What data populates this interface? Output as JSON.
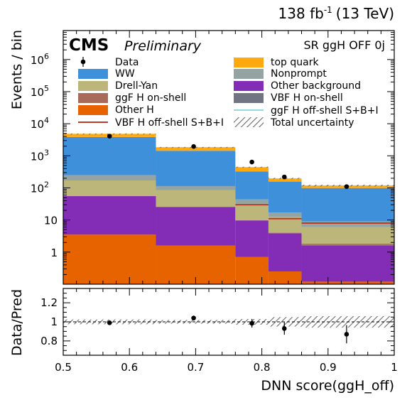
{
  "header": {
    "lumi": "138 fb",
    "lumi_sup": "-1",
    "energy": "(13 TeV)",
    "cms": "CMS",
    "preliminary": "Preliminary",
    "region": "SR ggH OFF 0j"
  },
  "colors": {
    "WW": "#3f90da",
    "top": "#ffa90e",
    "DY": "#bdb67a",
    "nonprompt": "#94a4a2",
    "ggFon": "#a96b59",
    "other_bkg": "#832db6",
    "VBFon": "#717581",
    "otherH": "#e76300",
    "vbf_off": "#b9392b",
    "ggf_off": "#92dadd"
  },
  "legend": {
    "data": "Data",
    "WW": "WW",
    "DY": "Drell-Yan",
    "ggFon": "ggF H on-shell",
    "otherH": "Other H",
    "vbf_off": "VBF H off-shell S+B+I",
    "top": "top quark",
    "nonprompt": "Nonprompt",
    "other_bkg": "Other background",
    "VBFon": "VBF H on-shell",
    "ggf_off": "ggF H off-shell S+B+I",
    "unc": "Total uncertainty"
  },
  "chart_data": {
    "type": "bar",
    "subtype": "stacked-histogram-with-ratio",
    "bin_edges": [
      0.5,
      0.64,
      0.76,
      0.81,
      0.86,
      1.0
    ],
    "xlim": [
      0.5,
      1.0
    ],
    "xlabel": "DNN score(ggH_off)",
    "xticks": [
      "0.5",
      "0.6",
      "0.7",
      "0.8",
      "0.9",
      "1"
    ],
    "ylabel": "Events / bin",
    "yscale": "log",
    "ylim": [
      0.1,
      8000000
    ],
    "yticks": [
      {
        "value": 1,
        "label": "1"
      },
      {
        "value": 10,
        "label": "10"
      },
      {
        "value": 100,
        "label": "10",
        "sup": "2"
      },
      {
        "value": 1000,
        "label": "10",
        "sup": "3"
      },
      {
        "value": 10000,
        "label": "10",
        "sup": "4"
      },
      {
        "value": 100000,
        "label": "10",
        "sup": "5"
      },
      {
        "value": 1000000,
        "label": "10",
        "sup": "6"
      }
    ],
    "stack": [
      {
        "key": "otherH",
        "name": "Other H",
        "values": [
          3.5,
          1.6,
          0.7,
          0.25,
          0.12
        ]
      },
      {
        "key": "other_bkg",
        "name": "Other background",
        "values": [
          52,
          24,
          9,
          3.6,
          1.5
        ]
      },
      {
        "key": "ggFon",
        "name": "ggF H on-shell",
        "values": [
          0.1,
          0.1,
          0.1,
          0.1,
          0.1
        ]
      },
      {
        "key": "VBFon",
        "name": "VBF H on-shell",
        "values": [
          0.1,
          0.1,
          0.1,
          0.1,
          0.1
        ]
      },
      {
        "key": "DY",
        "name": "Drell-Yan",
        "values": [
          115,
          60,
          22,
          8.5,
          4.2
        ]
      },
      {
        "key": "nonprompt",
        "name": "Nonprompt",
        "values": [
          80,
          28,
          12,
          4.5,
          3.0
        ]
      },
      {
        "key": "WW",
        "name": "WW",
        "values": [
          3600,
          1320,
          280,
          140,
          90
        ]
      },
      {
        "key": "top",
        "name": "top quark",
        "values": [
          1000,
          420,
          120,
          40,
          20
        ]
      }
    ],
    "lines": [
      {
        "key": "vbf_off",
        "name": "VBF H off-shell S+B+I",
        "values": [
          0,
          0,
          30,
          11,
          8
        ]
      },
      {
        "key": "ggf_off",
        "name": "ggF H off-shell S+B+I",
        "values": [
          0,
          0,
          0,
          0,
          0
        ]
      }
    ],
    "data": {
      "name": "Data",
      "x": [
        0.57,
        0.697,
        0.785,
        0.834,
        0.928
      ],
      "y": [
        4100,
        1950,
        640,
        220,
        110
      ]
    },
    "ratio": {
      "ylabel": "Data/Pred",
      "ylim": [
        0.65,
        1.35
      ],
      "yticks": [
        "0.8",
        "1",
        "1.2"
      ],
      "x": [
        0.57,
        0.697,
        0.785,
        0.834,
        0.928
      ],
      "y": [
        0.99,
        1.04,
        0.985,
        0.93,
        0.87
      ],
      "yerr": [
        0.015,
        0.025,
        0.045,
        0.065,
        0.095
      ],
      "unc": [
        0.025,
        0.02,
        0.03,
        0.05,
        0.06
      ]
    }
  }
}
